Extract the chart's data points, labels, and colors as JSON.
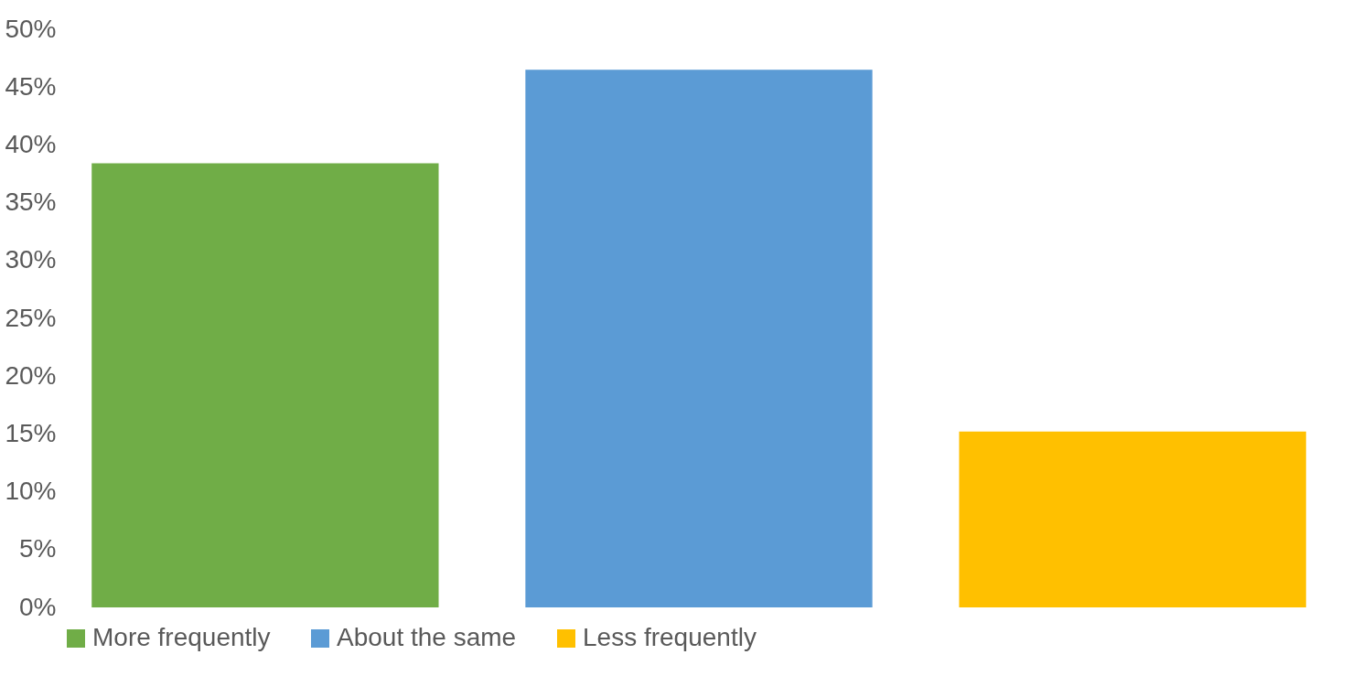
{
  "chart_data": {
    "type": "bar",
    "categories": [
      null
    ],
    "series": [
      {
        "name": "More frequently",
        "color": "#70ad47",
        "values": [
          38.4
        ]
      },
      {
        "name": "About the same",
        "color": "#5b9bd5",
        "values": [
          46.5
        ]
      },
      {
        "name": "Less frequently",
        "color": "#ffc000",
        "values": [
          15.2
        ]
      }
    ],
    "ylim": [
      0,
      50
    ],
    "yticks": [
      {
        "value": 0,
        "label": "0%"
      },
      {
        "value": 5,
        "label": "5%"
      },
      {
        "value": 10,
        "label": "10%"
      },
      {
        "value": 15,
        "label": "15%"
      },
      {
        "value": 20,
        "label": "20%"
      },
      {
        "value": 25,
        "label": "25%"
      },
      {
        "value": 30,
        "label": "30%"
      },
      {
        "value": 35,
        "label": "35%"
      },
      {
        "value": 40,
        "label": "40%"
      },
      {
        "value": 45,
        "label": "45%"
      },
      {
        "value": 50,
        "label": "50%"
      }
    ],
    "grid": false,
    "legend": "bottom",
    "tick_labels": "y"
  }
}
